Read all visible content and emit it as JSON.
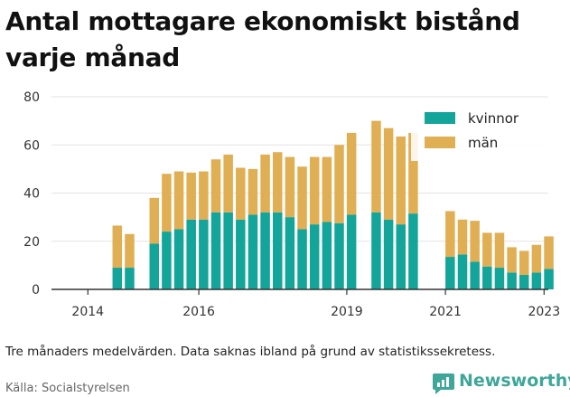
{
  "title": "Antal mottagare ekonomiskt bistånd varje månad",
  "note": "Tre månaders medelvärden. Data saknas ibland på grund av statistikssekretess.",
  "source": "Källa: Socialstyrelsen",
  "brand": {
    "name": "Newsworthy",
    "color": "#3fa69a"
  },
  "chart_data": {
    "type": "bar",
    "stacked": true,
    "x_tick_labels": [
      "2014",
      "2016",
      "2019",
      "2021",
      "2023"
    ],
    "y_ticks": [
      0,
      20,
      40,
      60,
      80
    ],
    "ylim": [
      0,
      80
    ],
    "grid": true,
    "legend_position": "top-right",
    "categories": [
      "2014-Q1",
      "2014-Q2",
      "2014-Q3",
      "2014-Q4",
      "2015-Q1",
      "2015-Q2",
      "2015-Q3",
      "2015-Q4",
      "2016-Q1",
      "2016-Q2",
      "2016-Q3",
      "2016-Q4",
      "2017-Q1",
      "2017-Q2",
      "2017-Q3",
      "2017-Q4",
      "2018-Q1",
      "2018-Q2",
      "2018-Q3",
      "2018-Q4",
      "2019-Q1",
      "2019-Q2",
      "2019-Q3",
      "2019-Q4",
      "2020-Q1",
      "2020-Q2",
      "2020-Q3",
      "2020-Q4",
      "2021-Q1",
      "2021-Q2",
      "2021-Q3",
      "2021-Q4",
      "2022-Q1",
      "2022-Q2",
      "2022-Q3",
      "2022-Q4",
      "2023-Q1",
      "2023-Q2"
    ],
    "series": [
      {
        "name": "kvinnor",
        "color": "#13a49a",
        "values": [
          null,
          null,
          9,
          9,
          null,
          19,
          24,
          25,
          29,
          29,
          32,
          32,
          29,
          31,
          32,
          32,
          30,
          25,
          27,
          28,
          27.5,
          31,
          null,
          32,
          29,
          27,
          31.5,
          null,
          null,
          13.5,
          14.5,
          11.5,
          9.5,
          9,
          7,
          6,
          7,
          8.5
        ]
      },
      {
        "name": "män",
        "color": "#e0ae53",
        "values": [
          null,
          null,
          17.5,
          14,
          null,
          19,
          24,
          24,
          19.5,
          20,
          22,
          24,
          21.5,
          19,
          24,
          25,
          25,
          26,
          28,
          27,
          32.5,
          34,
          null,
          38,
          38,
          36.5,
          33.5,
          null,
          null,
          19,
          14.5,
          17,
          14,
          14.5,
          10.5,
          10,
          11.5,
          13.5
        ]
      }
    ]
  }
}
